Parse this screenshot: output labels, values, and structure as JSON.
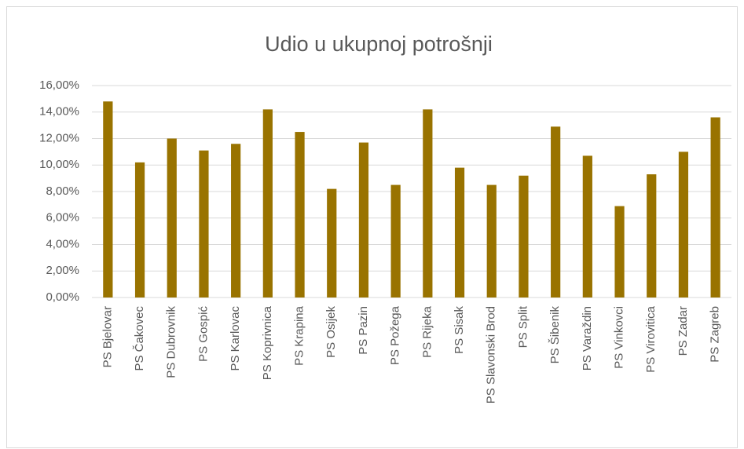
{
  "chart_data": {
    "type": "bar",
    "title": "Udio u ukupnoj potrošnji",
    "categories": [
      "PS Bjelovar",
      "PS Čakovec",
      "PS Dubrovnik",
      "PS Gospić",
      "PS Karlovac",
      "PS Koprivnica",
      "PS Krapina",
      "PS Osijek",
      "PS Pazin",
      "PS Požega",
      "PS Rijeka",
      "PS Sisak",
      "PS Slavonski Brod",
      "PS Split",
      "PS Šibenik",
      "PS Varaždin",
      "PS Vinkovci",
      "PS Virovitica",
      "PS Zadar",
      "PS Zagreb"
    ],
    "values": [
      14.8,
      10.2,
      12.0,
      11.1,
      11.6,
      14.2,
      12.5,
      8.2,
      11.7,
      8.5,
      14.2,
      9.8,
      8.5,
      9.2,
      12.9,
      10.7,
      6.9,
      9.3,
      11.0,
      13.6
    ],
    "color": "#997300",
    "ylim": [
      0,
      16
    ],
    "yticks": [
      {
        "value": 0,
        "label": "0,00%"
      },
      {
        "value": 2,
        "label": "2,00%"
      },
      {
        "value": 4,
        "label": "4,00%"
      },
      {
        "value": 6,
        "label": "6,00%"
      },
      {
        "value": 8,
        "label": "8,00%"
      },
      {
        "value": 10,
        "label": "10,00%"
      },
      {
        "value": 12,
        "label": "12,00%"
      },
      {
        "value": 14,
        "label": "14,00%"
      },
      {
        "value": 16,
        "label": "16,00%"
      }
    ],
    "grid": true
  }
}
